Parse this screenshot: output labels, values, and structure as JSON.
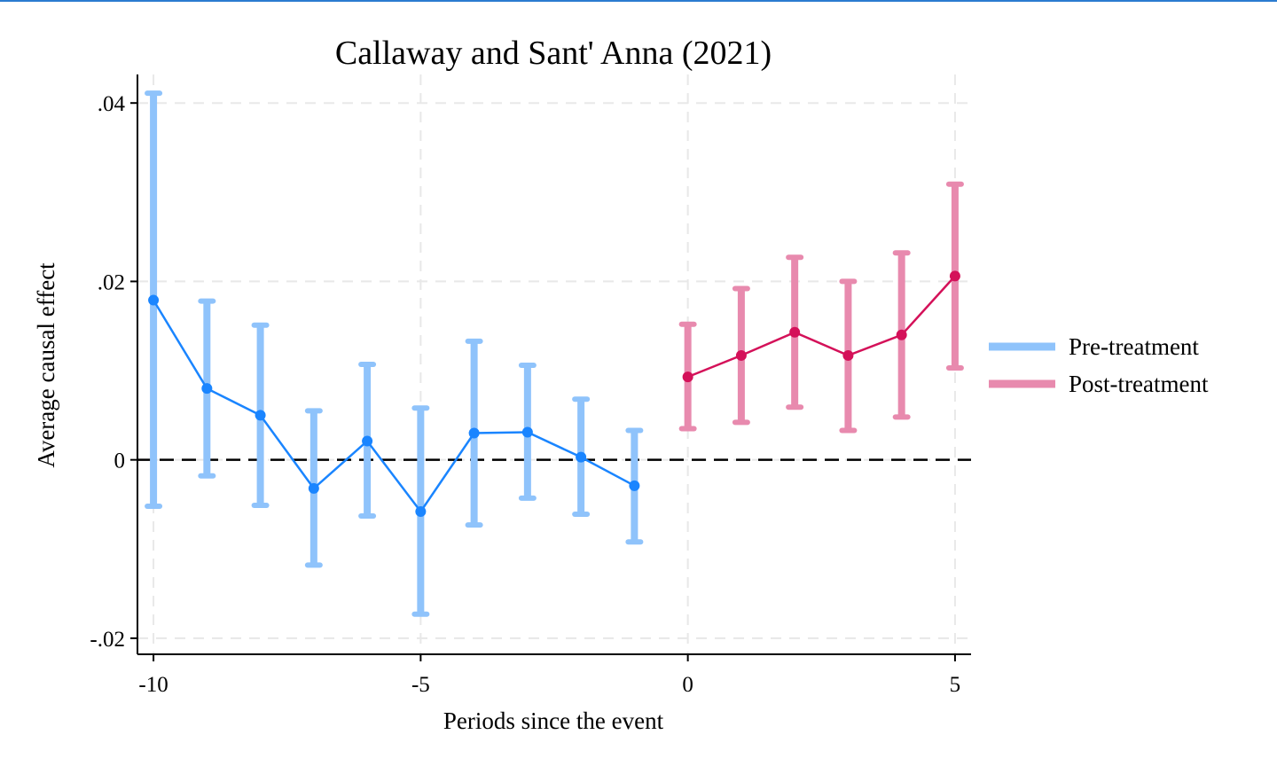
{
  "chart_data": {
    "type": "line",
    "title": "Callaway and Sant' Anna (2021)",
    "xlabel": "Periods since the event",
    "ylabel": "Average causal effect",
    "xlim": [
      -10.3,
      5.3
    ],
    "ylim": [
      -0.0218,
      0.0432
    ],
    "x_ticks": [
      -10,
      -5,
      0,
      5
    ],
    "x_tick_labels": [
      "-10",
      "-5",
      "0",
      "5"
    ],
    "y_ticks": [
      -0.02,
      0,
      0.02,
      0.04
    ],
    "y_tick_labels": [
      "-.02",
      "0",
      ".02",
      ".04"
    ],
    "grid": true,
    "reference_line": 0,
    "legend_position": "right",
    "colors": {
      "pre_line": "#1a85ff",
      "pre_ci": "#8fc3fb",
      "post_line": "#d41159",
      "post_ci": "#e88aae",
      "grid": "#e8e8e8",
      "zero_line": "#000000"
    },
    "series": [
      {
        "name": "Pre-treatment",
        "x": [
          -10,
          -9,
          -8,
          -7,
          -6,
          -5,
          -4,
          -3,
          -2,
          -1
        ],
        "y": [
          0.0179,
          0.008,
          0.005,
          -0.0032,
          0.0021,
          -0.0058,
          0.003,
          0.0031,
          0.0003,
          -0.0029
        ],
        "ci_low": [
          -0.0052,
          -0.0018,
          -0.0051,
          -0.0118,
          -0.0063,
          -0.0173,
          -0.0073,
          -0.0043,
          -0.0061,
          -0.0092
        ],
        "ci_high": [
          0.0411,
          0.0178,
          0.0151,
          0.0055,
          0.0107,
          0.0058,
          0.0133,
          0.0106,
          0.0068,
          0.0033
        ]
      },
      {
        "name": "Post-treatment",
        "x": [
          0,
          1,
          2,
          3,
          4,
          5
        ],
        "y": [
          0.0093,
          0.0117,
          0.0143,
          0.0117,
          0.014,
          0.0206
        ],
        "ci_low": [
          0.0035,
          0.0042,
          0.0059,
          0.0033,
          0.0048,
          0.0103
        ],
        "ci_high": [
          0.0152,
          0.0192,
          0.0227,
          0.02,
          0.0232,
          0.0309
        ]
      }
    ]
  }
}
